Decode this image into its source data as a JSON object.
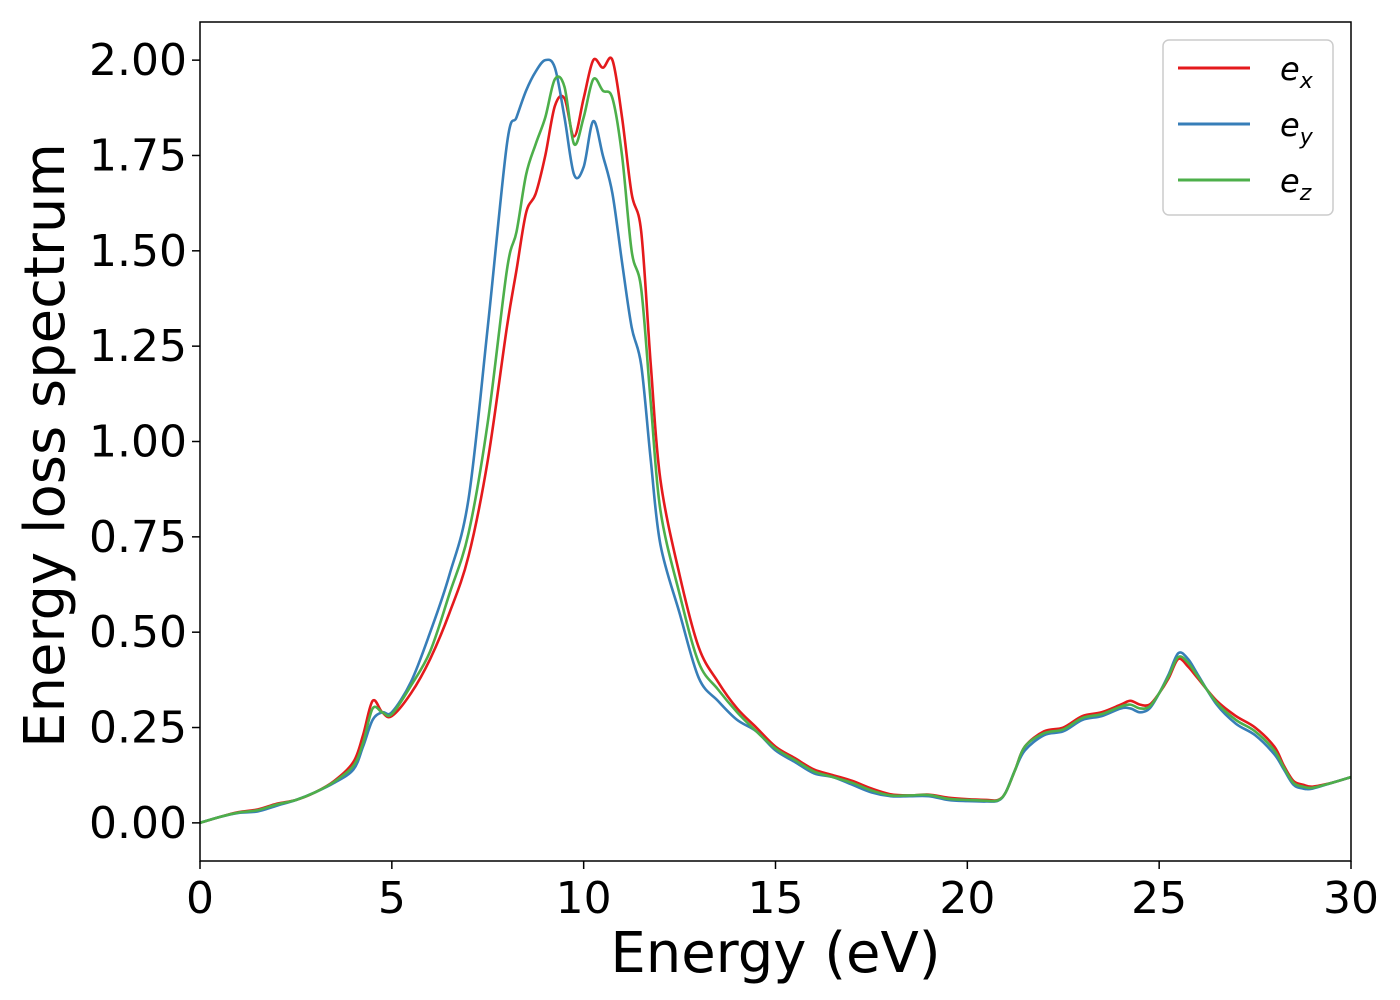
{
  "chart_data": {
    "type": "line",
    "xlabel": "Energy (eV)",
    "ylabel": "Energy loss spectrum",
    "xlim": [
      0,
      30
    ],
    "ylim": [
      -0.1,
      2.1
    ],
    "xticks": [
      0,
      5,
      10,
      15,
      20,
      25,
      30
    ],
    "xtick_labels": [
      "0",
      "5",
      "10",
      "15",
      "20",
      "25",
      "30"
    ],
    "yticks": [
      0.0,
      0.25,
      0.5,
      0.75,
      1.0,
      1.25,
      1.5,
      1.75,
      2.0
    ],
    "ytick_labels": [
      "0.00",
      "0.25",
      "0.50",
      "0.75",
      "1.00",
      "1.25",
      "1.50",
      "1.75",
      "2.00"
    ],
    "grid": false,
    "legend_position": "top-right",
    "x": [
      0,
      0.5,
      1,
      1.5,
      2,
      2.5,
      3,
      3.5,
      4,
      4.25,
      4.5,
      4.75,
      5,
      5.5,
      6,
      6.5,
      7,
      7.5,
      8,
      8.25,
      8.5,
      8.75,
      9,
      9.25,
      9.5,
      9.75,
      10,
      10.25,
      10.5,
      10.75,
      11,
      11.25,
      11.5,
      11.75,
      12,
      12.5,
      13,
      13.5,
      14,
      14.5,
      15,
      15.5,
      16,
      16.5,
      17,
      17.5,
      18,
      18.5,
      19,
      19.5,
      20,
      20.5,
      20.8,
      21,
      21.25,
      21.5,
      22,
      22.5,
      23,
      23.5,
      24,
      24.25,
      24.5,
      24.75,
      25,
      25.25,
      25.5,
      25.75,
      26,
      26.5,
      27,
      27.5,
      28,
      28.25,
      28.5,
      28.75,
      29,
      29.5,
      30
    ],
    "series": [
      {
        "name": "e_x",
        "base": "e",
        "sub": "x",
        "color": "#e41a1c",
        "values": [
          0.0,
          0.015,
          0.028,
          0.035,
          0.05,
          0.06,
          0.08,
          0.11,
          0.16,
          0.23,
          0.32,
          0.29,
          0.28,
          0.34,
          0.43,
          0.55,
          0.7,
          0.95,
          1.3,
          1.45,
          1.6,
          1.65,
          1.75,
          1.88,
          1.9,
          1.8,
          1.9,
          2.0,
          1.98,
          2.0,
          1.85,
          1.65,
          1.55,
          1.2,
          0.9,
          0.65,
          0.46,
          0.37,
          0.3,
          0.25,
          0.2,
          0.17,
          0.14,
          0.125,
          0.11,
          0.09,
          0.075,
          0.072,
          0.074,
          0.066,
          0.062,
          0.06,
          0.06,
          0.08,
          0.14,
          0.2,
          0.24,
          0.25,
          0.28,
          0.29,
          0.31,
          0.32,
          0.31,
          0.31,
          0.34,
          0.38,
          0.43,
          0.41,
          0.38,
          0.32,
          0.28,
          0.25,
          0.2,
          0.15,
          0.11,
          0.1,
          0.095,
          0.105,
          0.12
        ]
      },
      {
        "name": "e_y",
        "base": "e",
        "sub": "y",
        "color": "#377eb8",
        "values": [
          0.0,
          0.015,
          0.026,
          0.03,
          0.045,
          0.06,
          0.08,
          0.105,
          0.14,
          0.2,
          0.27,
          0.29,
          0.29,
          0.37,
          0.5,
          0.65,
          0.85,
          1.3,
          1.78,
          1.85,
          1.92,
          1.97,
          2.0,
          1.98,
          1.85,
          1.7,
          1.72,
          1.84,
          1.75,
          1.65,
          1.47,
          1.3,
          1.2,
          0.95,
          0.73,
          0.55,
          0.38,
          0.32,
          0.27,
          0.24,
          0.19,
          0.16,
          0.13,
          0.12,
          0.1,
          0.08,
          0.07,
          0.07,
          0.07,
          0.06,
          0.057,
          0.056,
          0.058,
          0.08,
          0.14,
          0.19,
          0.23,
          0.24,
          0.27,
          0.28,
          0.3,
          0.3,
          0.29,
          0.3,
          0.34,
          0.39,
          0.445,
          0.43,
          0.39,
          0.31,
          0.26,
          0.23,
          0.18,
          0.14,
          0.1,
          0.09,
          0.09,
          0.105,
          0.12
        ]
      },
      {
        "name": "e_z",
        "base": "e",
        "sub": "z",
        "color": "#4daf4a",
        "values": [
          0.0,
          0.015,
          0.027,
          0.033,
          0.048,
          0.06,
          0.08,
          0.108,
          0.15,
          0.21,
          0.3,
          0.29,
          0.285,
          0.36,
          0.45,
          0.6,
          0.76,
          1.05,
          1.45,
          1.55,
          1.7,
          1.78,
          1.85,
          1.95,
          1.93,
          1.78,
          1.85,
          1.95,
          1.92,
          1.9,
          1.75,
          1.5,
          1.4,
          1.1,
          0.82,
          0.6,
          0.42,
          0.35,
          0.29,
          0.24,
          0.195,
          0.165,
          0.135,
          0.12,
          0.105,
          0.085,
          0.072,
          0.072,
          0.073,
          0.063,
          0.06,
          0.058,
          0.059,
          0.08,
          0.14,
          0.2,
          0.235,
          0.245,
          0.275,
          0.285,
          0.305,
          0.31,
          0.3,
          0.305,
          0.34,
          0.385,
          0.435,
          0.42,
          0.385,
          0.315,
          0.27,
          0.24,
          0.19,
          0.145,
          0.105,
          0.095,
          0.092,
          0.105,
          0.12
        ]
      }
    ]
  }
}
